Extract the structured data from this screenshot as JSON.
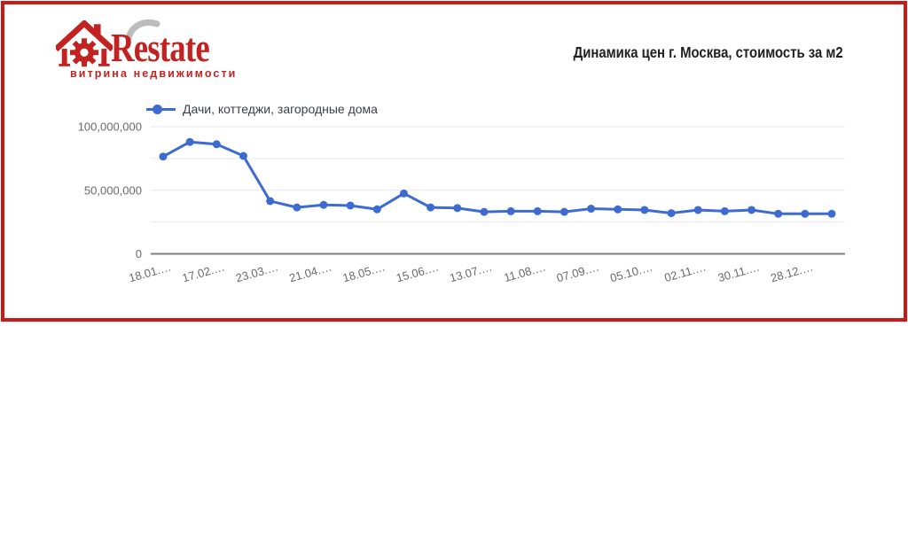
{
  "page": {
    "background": "#ffffff",
    "border_color": "#c81b18"
  },
  "logo": {
    "brand": "Restate",
    "tagline": "витрина недвижимости",
    "brand_color": "#c32320",
    "swoosh_color": "#bcbcbc"
  },
  "header": {
    "title": "Динамика цен г. Москва, стоимость за м2"
  },
  "chart_data": {
    "type": "line",
    "title": "Динамика цен г. Москва, стоимость за м2",
    "legend_position": "top",
    "legend_label": "Дачи, коттеджи, загородные дома",
    "series": [
      {
        "name": "Дачи, коттеджи, загородные дома",
        "color": "#3d6bd1",
        "values": [
          76500000,
          88000000,
          86200000,
          77000000,
          41500000,
          36500000,
          38500000,
          38000000,
          35000000,
          47500000,
          36500000,
          36000000,
          33000000,
          33500000,
          33500000,
          33000000,
          35500000,
          35000000,
          34500000,
          32000000,
          34500000,
          33500000,
          34500000,
          31500000,
          31500000,
          31500000
        ]
      }
    ],
    "n_points": 26,
    "x_tick_labels": [
      "18.01.…",
      "17.02.…",
      "23.03.…",
      "21.04.…",
      "18.05.…",
      "15.06.…",
      "13.07.…",
      "11.08.…",
      "07.09.…",
      "05.10.…",
      "02.11.…",
      "30.11.…",
      "28.12.…"
    ],
    "x_label_every_n_points": 2,
    "ylim": [
      0,
      100000000
    ],
    "y_ticks": [
      {
        "value": 100000000,
        "label": "100,000,000"
      },
      {
        "value": 50000000,
        "label": "50,000,000"
      },
      {
        "value": 0,
        "label": "0"
      }
    ],
    "y_gridline_values": [
      25000000,
      50000000,
      75000000,
      100000000
    ],
    "grid": true,
    "axis_color": "#7f7f7f",
    "grid_color": "#e7e7e7",
    "label_color": "#696969"
  }
}
